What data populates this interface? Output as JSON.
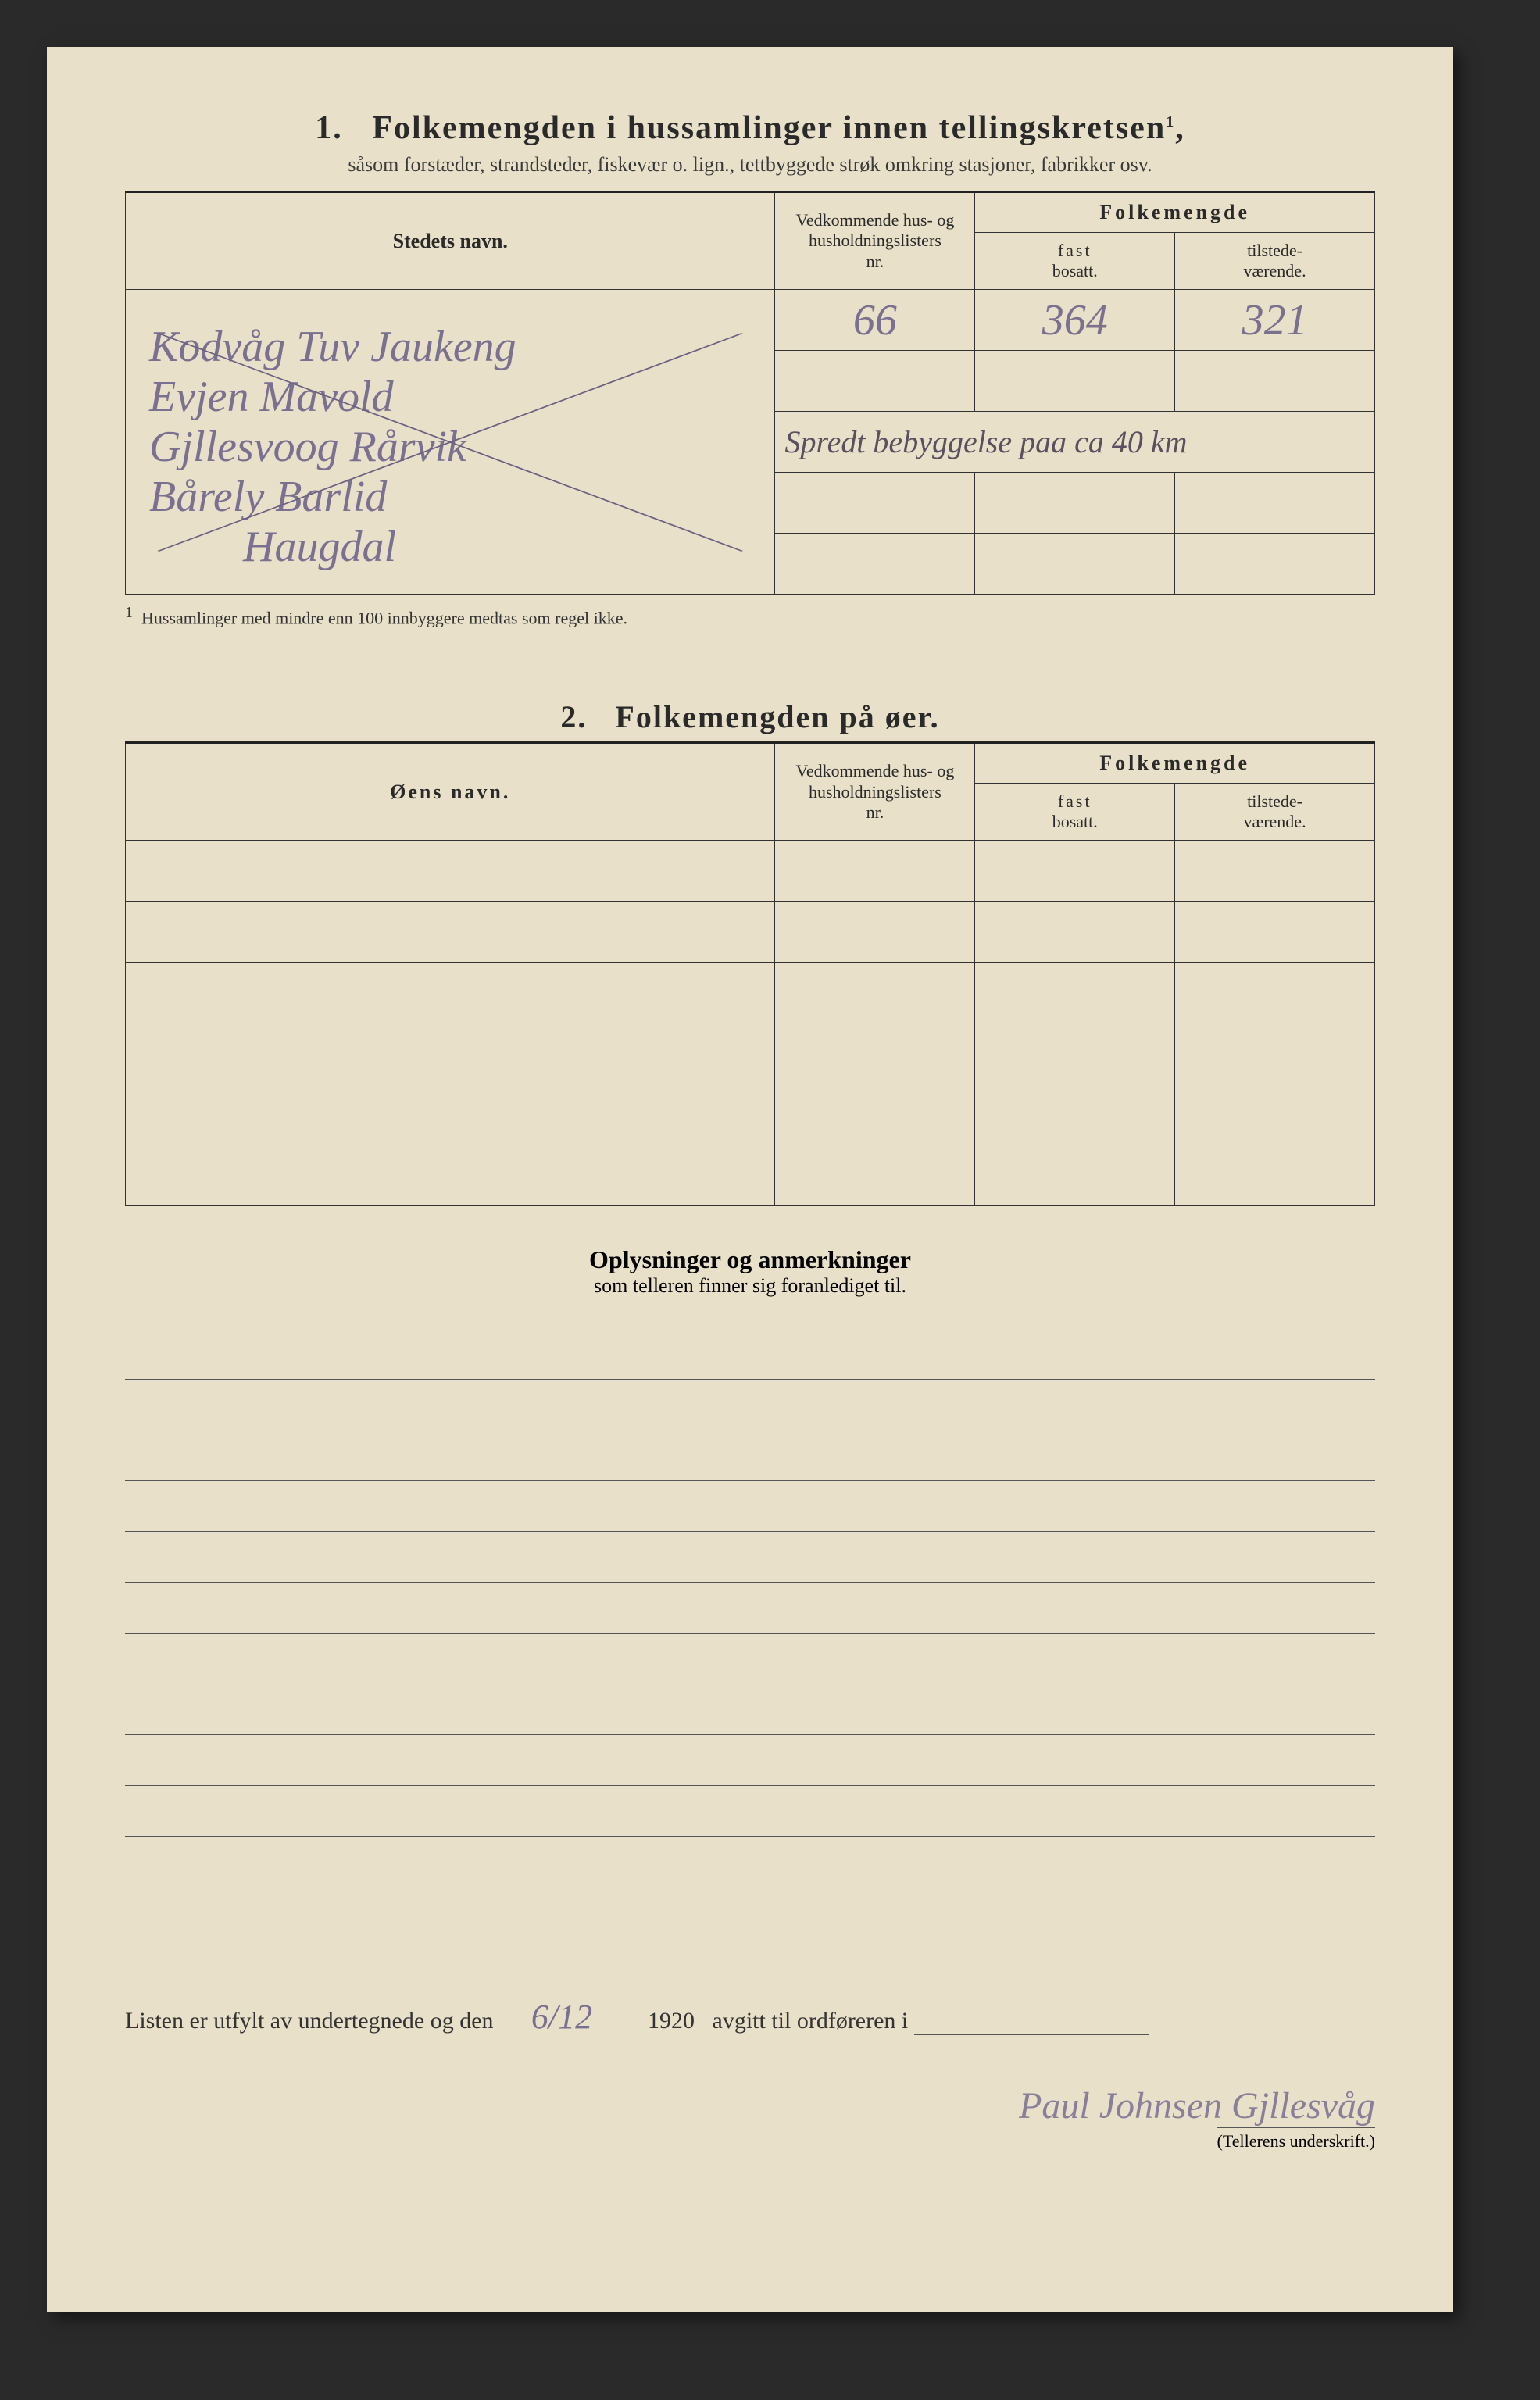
{
  "section1": {
    "number": "1.",
    "title": "Folkemengden i hussamlinger innen tellingskretsen",
    "title_sup": "1",
    "subtitle": "såsom forstæder, strandsteder, fiskevær o. lign., tettbyggede strøk omkring stasjoner, fabrikker osv.",
    "headers": {
      "name": "Stedets navn.",
      "nr_line1": "Vedkommende hus- og",
      "nr_line2": "husholdningslisters",
      "nr_line3": "nr.",
      "folkemengde": "Folkemengde",
      "fast_l1": "fast",
      "fast_l2": "bosatt.",
      "til_l1": "tilstede-",
      "til_l2": "værende."
    },
    "rows": [
      {
        "name": "Kodvåg  Tuv  Jaukeng",
        "nr": "66",
        "fast": "364",
        "til": "321"
      },
      {
        "name": "Evjen  Mavold",
        "nr": "",
        "fast": "",
        "til": ""
      },
      {
        "name": "Gjllesvoog  Rårvik",
        "nr": "Spredt bebyggelse paa ca 40 km",
        "fast": "",
        "til": ""
      },
      {
        "name": "Bårely  Barlid",
        "nr": "",
        "fast": "",
        "til": ""
      },
      {
        "name": "Haugdal",
        "nr": "",
        "fast": "",
        "til": ""
      }
    ],
    "footnote_sup": "1",
    "footnote": "Hussamlinger med mindre enn 100 innbyggere medtas som regel ikke."
  },
  "section2": {
    "number": "2.",
    "title": "Folkemengden på øer.",
    "headers": {
      "name": "Øens navn.",
      "nr_line1": "Vedkommende hus- og",
      "nr_line2": "husholdningslisters",
      "nr_line3": "nr.",
      "folkemengde": "Folkemengde",
      "fast_l1": "fast",
      "fast_l2": "bosatt.",
      "til_l1": "tilstede-",
      "til_l2": "værende."
    },
    "blank_rows": 6
  },
  "section3": {
    "title": "Oplysninger og anmerkninger",
    "subtitle": "som telleren finner sig foranlediget til.",
    "ruled_lines": 11
  },
  "footer": {
    "prefix": "Listen er utfylt av undertegnede og den",
    "date": "6/12",
    "year": "1920",
    "suffix": "avgitt til ordføreren i",
    "signature": "Paul Johnsen Gjllesvåg",
    "sig_label": "(Tellerens underskrift.)"
  },
  "colors": {
    "paper": "#e8e0c8",
    "ink": "#2a2a2a",
    "pencil": "#7a7090"
  }
}
